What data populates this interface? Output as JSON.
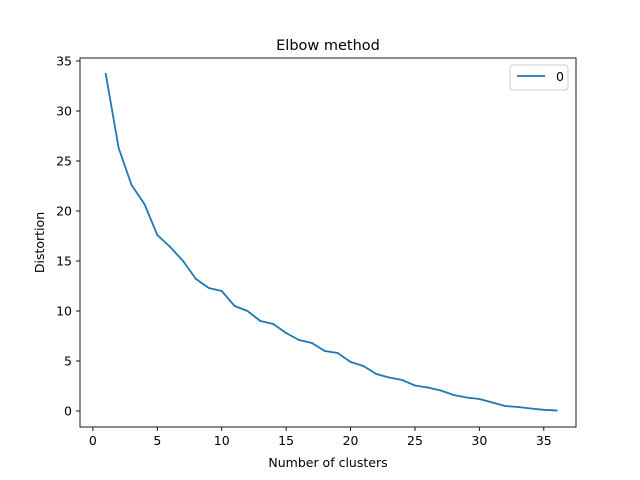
{
  "chart_data": {
    "type": "line",
    "title": "Elbow method",
    "xlabel": "Number of clusters",
    "ylabel": "Distortion",
    "xlim": [
      -1,
      37.5
    ],
    "ylim": [
      -1.6,
      35.3
    ],
    "xticks": [
      0,
      5,
      10,
      15,
      20,
      25,
      30,
      35
    ],
    "yticks": [
      0,
      5,
      10,
      15,
      20,
      25,
      30,
      35
    ],
    "grid": false,
    "legend_position": "top-right",
    "series": [
      {
        "name": "0",
        "color": "#1f77b4",
        "x": [
          1,
          2,
          3,
          4,
          5,
          6,
          7,
          8,
          9,
          10,
          11,
          12,
          13,
          14,
          15,
          16,
          17,
          18,
          19,
          20,
          21,
          22,
          23,
          24,
          25,
          26,
          27,
          28,
          29,
          30,
          31,
          32,
          33,
          34,
          35,
          36
        ],
        "y": [
          33.7,
          26.3,
          22.6,
          20.7,
          17.6,
          16.4,
          15.0,
          13.2,
          12.3,
          12.0,
          10.5,
          10.0,
          9.0,
          8.7,
          7.8,
          7.1,
          6.8,
          6.0,
          5.8,
          4.9,
          4.5,
          3.7,
          3.35,
          3.1,
          2.55,
          2.35,
          2.05,
          1.6,
          1.35,
          1.2,
          0.85,
          0.5,
          0.4,
          0.25,
          0.12,
          0.05
        ]
      }
    ]
  }
}
